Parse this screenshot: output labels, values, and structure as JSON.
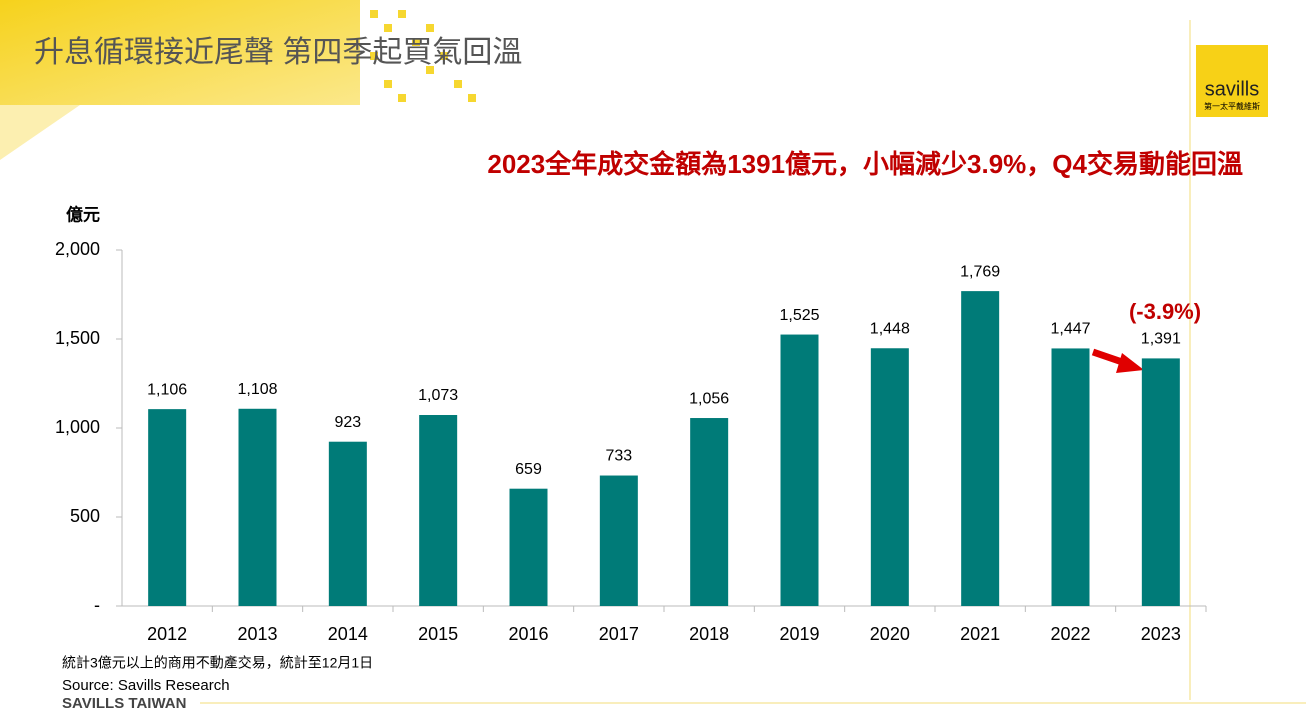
{
  "header": {
    "title": "升息循環接近尾聲 第四季起買氣回溫",
    "logo": "savills",
    "logo_sub": "第一太平戴維斯",
    "footer": "SAVILLS TAIWAN"
  },
  "chart_data": {
    "type": "bar",
    "title": "2023全年成交金額為1391億元，小幅減少3.9%，Q4交易動能回溫",
    "y_label": "億元",
    "annotation": "(-3.9%)",
    "note": "統計3億元以上的商用不動產交易，統計至12月1日",
    "source": "Source: Savills Research",
    "categories": [
      "2012",
      "2013",
      "2014",
      "2015",
      "2016",
      "2017",
      "2018",
      "2019",
      "2020",
      "2021",
      "2022",
      "2023"
    ],
    "values": [
      1106,
      1108,
      923,
      1073,
      659,
      733,
      1056,
      1525,
      1448,
      1769,
      1447,
      1391
    ],
    "value_labels": [
      "1,106",
      "1,108",
      "923",
      "1,073",
      "659",
      "733",
      "1,056",
      "1,525",
      "1,448",
      "1,769",
      "1,447",
      "1,391"
    ],
    "color": "#007b78",
    "ylim": [
      0,
      2000
    ],
    "yticks": [
      {
        "value": 0,
        "label": "-"
      },
      500,
      {
        "value": 1000,
        "label": "1,000"
      },
      {
        "value": 1500,
        "label": "1,500"
      },
      {
        "value": 2000,
        "label": "2,000"
      }
    ],
    "grid": false
  }
}
